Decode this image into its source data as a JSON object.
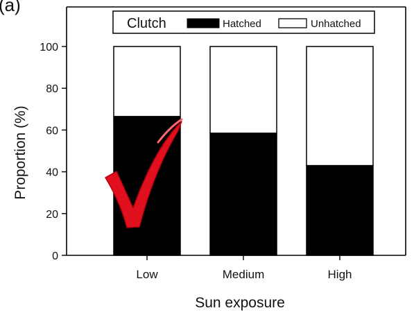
{
  "chart_data": {
    "type": "bar",
    "stacked": true,
    "panel_label": "(a)",
    "categories": [
      "Low",
      "Medium",
      "High"
    ],
    "series": [
      {
        "name": "Hatched",
        "values": [
          66.5,
          58.5,
          43
        ],
        "color": "#000000"
      },
      {
        "name": "Unhatched",
        "values": [
          33.5,
          41.5,
          57
        ],
        "color": "#ffffff"
      }
    ],
    "title": "",
    "xlabel": "Sun exposure",
    "ylabel": "Proportion (%)",
    "ylim": [
      0,
      100
    ],
    "yticks": [
      "0",
      "20",
      "40",
      "60",
      "80",
      "100"
    ],
    "grid": false,
    "legend": {
      "title": "Clutch",
      "position": "top",
      "entries": [
        "Hatched",
        "Unhatched"
      ]
    },
    "annotation": {
      "type": "checkmark",
      "color": "#e0101e",
      "category": "Low"
    }
  }
}
